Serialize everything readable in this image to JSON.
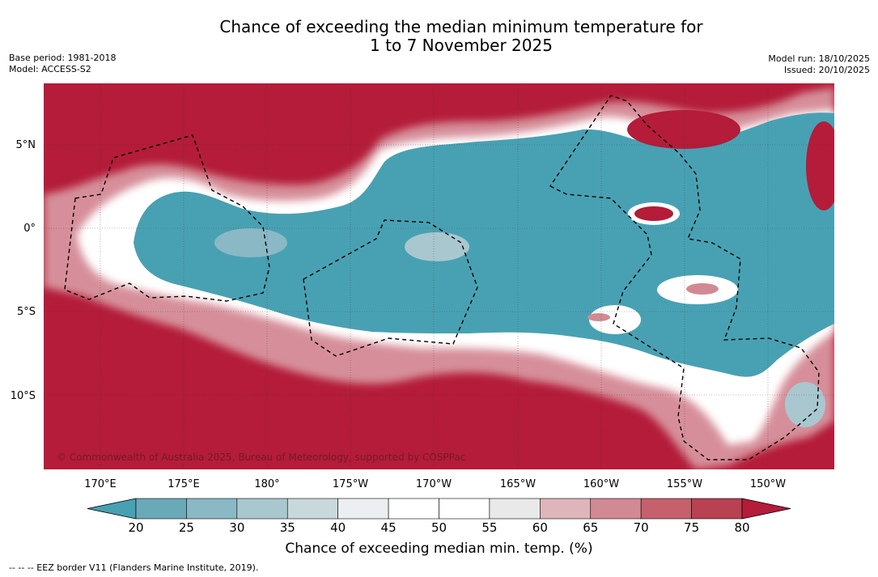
{
  "title_line1": "Chance of exceeding the median minimum temperature for",
  "title_line2": "1 to 7 November 2025",
  "left_meta": {
    "base_period": "Base period: 1981-2018",
    "model": "Model: ACCESS-S2"
  },
  "right_meta": {
    "model_run": "Model run: 18/10/2025",
    "issued": "Issued: 20/10/2025"
  },
  "map": {
    "longitude_labels": [
      "170°E",
      "175°E",
      "180°",
      "175°W",
      "170°W",
      "165°W",
      "160°W",
      "155°W",
      "150°W"
    ],
    "latitude_labels": [
      "5°N",
      "0°",
      "5°S",
      "10°S"
    ],
    "copyright": "© Commonwealth of Australia 2025, Bureau of Meteorology, supported by COSPPac",
    "colors": {
      "above": "#b41c39",
      "below": "#48a1b3",
      "neutral": "#ffffff"
    }
  },
  "colorbar": {
    "ticks": [
      "20",
      "25",
      "30",
      "35",
      "40",
      "45",
      "50",
      "55",
      "60",
      "65",
      "70",
      "75",
      "80"
    ],
    "colors": [
      "#6aa9b8",
      "#8ab8c5",
      "#a9c7cf",
      "#c9d9db",
      "#eceff1",
      "#ffffff",
      "#ffffff",
      "#e9e9ea",
      "#ddb5bb",
      "#d18a93",
      "#c5606c",
      "#b84152"
    ],
    "low_color": "#48a1b3",
    "high_color": "#b41c39",
    "label": "Chance of exceeding median min. temp. (%)"
  },
  "footnote": "--  --  -- EEZ border V11 (Flanders Marine Institute, 2019)."
}
